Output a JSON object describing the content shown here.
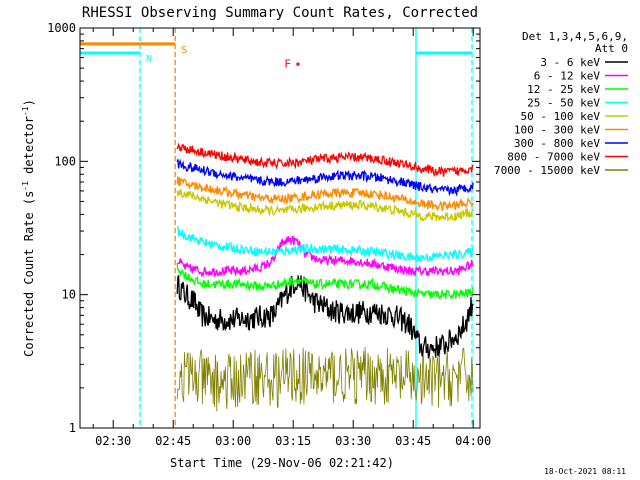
{
  "chart_data": {
    "type": "line",
    "title": "RHESSI Observing Summary Count Rates, Corrected",
    "xlabel": "Start Time (29-Nov-06 02:21:42)",
    "ylabel_main": "Corrected Count Rate (s",
    "ylabel_sup1": "-1",
    "ylabel_mid": " detector",
    "ylabel_sup2": "-1",
    "ylabel_end": ")",
    "y_scale": "log",
    "ylim": [
      1,
      1000
    ],
    "y_ticks": [
      {
        "value": 1,
        "label": "1"
      },
      {
        "value": 10,
        "label": "10"
      },
      {
        "value": 100,
        "label": "100"
      },
      {
        "value": 1000,
        "label": "1000"
      }
    ],
    "xlim": [
      21.7,
      121.7
    ],
    "x_ticks": [
      {
        "value": 30,
        "label": "02:30"
      },
      {
        "value": 45,
        "label": "02:45"
      },
      {
        "value": 60,
        "label": "03:00"
      },
      {
        "value": 75,
        "label": "03:15"
      },
      {
        "value": 90,
        "label": "03:30"
      },
      {
        "value": 105,
        "label": "03:45"
      },
      {
        "value": 120,
        "label": "04:00"
      }
    ],
    "legend_position": "right",
    "legend_header": [
      "Det 1,3,4,5,6,9,",
      "Att 0"
    ],
    "series": [
      {
        "name": "3 - 6 keV",
        "color": "#000000",
        "points": [
          [
            46,
            12
          ],
          [
            48,
            10
          ],
          [
            50,
            9
          ],
          [
            52,
            7
          ],
          [
            55,
            6.5
          ],
          [
            60,
            6.5
          ],
          [
            65,
            6.7
          ],
          [
            70,
            7
          ],
          [
            73,
            10
          ],
          [
            76,
            13
          ],
          [
            80,
            9
          ],
          [
            85,
            7.5
          ],
          [
            90,
            7.3
          ],
          [
            95,
            7.5
          ],
          [
            100,
            7
          ],
          [
            104,
            6
          ],
          [
            107,
            4
          ],
          [
            110,
            4
          ],
          [
            113,
            4.2
          ],
          [
            116,
            5
          ],
          [
            118,
            6
          ],
          [
            120,
            9
          ]
        ]
      },
      {
        "name": "6 - 12 keV",
        "color": "#ff00ff",
        "points": [
          [
            46,
            18
          ],
          [
            48,
            16
          ],
          [
            52,
            15
          ],
          [
            57,
            15
          ],
          [
            62,
            15
          ],
          [
            67,
            16
          ],
          [
            70,
            18
          ],
          [
            72,
            24
          ],
          [
            74,
            26
          ],
          [
            76,
            25
          ],
          [
            78,
            20
          ],
          [
            82,
            18
          ],
          [
            86,
            18
          ],
          [
            90,
            18
          ],
          [
            95,
            17
          ],
          [
            100,
            16
          ],
          [
            104,
            15
          ],
          [
            108,
            15
          ],
          [
            112,
            15
          ],
          [
            116,
            15
          ],
          [
            120,
            17
          ]
        ]
      },
      {
        "name": "12 - 25 keV",
        "color": "#00ff00",
        "points": [
          [
            46,
            16
          ],
          [
            48,
            14
          ],
          [
            52,
            12
          ],
          [
            57,
            12
          ],
          [
            62,
            12
          ],
          [
            67,
            11.5
          ],
          [
            72,
            12
          ],
          [
            76,
            13
          ],
          [
            80,
            12
          ],
          [
            85,
            12
          ],
          [
            90,
            12
          ],
          [
            95,
            12
          ],
          [
            100,
            11
          ],
          [
            104,
            10.5
          ],
          [
            108,
            10
          ],
          [
            112,
            10
          ],
          [
            116,
            10
          ],
          [
            120,
            10.5
          ]
        ]
      },
      {
        "name": "25 - 50 keV",
        "color": "#00ffff",
        "points": [
          [
            46,
            30
          ],
          [
            48,
            28
          ],
          [
            52,
            25
          ],
          [
            57,
            23
          ],
          [
            62,
            22
          ],
          [
            67,
            21
          ],
          [
            72,
            21
          ],
          [
            76,
            22
          ],
          [
            80,
            22
          ],
          [
            85,
            22
          ],
          [
            90,
            21.5
          ],
          [
            95,
            21
          ],
          [
            100,
            20
          ],
          [
            104,
            19
          ],
          [
            108,
            19
          ],
          [
            112,
            19.5
          ],
          [
            116,
            20
          ],
          [
            120,
            21
          ]
        ]
      },
      {
        "name": "50 - 100 keV",
        "color": "#c8c800",
        "points": [
          [
            46,
            60
          ],
          [
            48,
            57
          ],
          [
            52,
            53
          ],
          [
            57,
            48
          ],
          [
            62,
            45
          ],
          [
            67,
            43
          ],
          [
            72,
            42
          ],
          [
            77,
            44
          ],
          [
            82,
            46
          ],
          [
            87,
            47
          ],
          [
            92,
            47
          ],
          [
            97,
            45
          ],
          [
            102,
            42
          ],
          [
            107,
            39
          ],
          [
            112,
            38
          ],
          [
            116,
            39
          ],
          [
            120,
            42
          ]
        ]
      },
      {
        "name": "100 - 300 keV",
        "color": "#ff8800",
        "points": [
          [
            46,
            72
          ],
          [
            48,
            68
          ],
          [
            52,
            64
          ],
          [
            57,
            60
          ],
          [
            62,
            56
          ],
          [
            67,
            53
          ],
          [
            72,
            52
          ],
          [
            77,
            54
          ],
          [
            82,
            57
          ],
          [
            87,
            58
          ],
          [
            92,
            58
          ],
          [
            97,
            56
          ],
          [
            102,
            52
          ],
          [
            107,
            48
          ],
          [
            112,
            46
          ],
          [
            116,
            47
          ],
          [
            120,
            50
          ]
        ]
      },
      {
        "name": "300 - 800 keV",
        "color": "#0000ff",
        "points": [
          [
            46,
            96
          ],
          [
            48,
            92
          ],
          [
            52,
            86
          ],
          [
            57,
            80
          ],
          [
            62,
            75
          ],
          [
            67,
            71
          ],
          [
            72,
            70
          ],
          [
            77,
            72
          ],
          [
            82,
            76
          ],
          [
            87,
            78
          ],
          [
            92,
            78
          ],
          [
            97,
            75
          ],
          [
            102,
            70
          ],
          [
            107,
            64
          ],
          [
            112,
            60
          ],
          [
            116,
            61
          ],
          [
            120,
            65
          ]
        ]
      },
      {
        "name": "800 - 7000 keV",
        "color": "#ff0000",
        "points": [
          [
            46,
            130
          ],
          [
            48,
            125
          ],
          [
            52,
            118
          ],
          [
            57,
            110
          ],
          [
            62,
            103
          ],
          [
            67,
            98
          ],
          [
            72,
            96
          ],
          [
            77,
            99
          ],
          [
            82,
            104
          ],
          [
            87,
            107
          ],
          [
            92,
            107
          ],
          [
            97,
            103
          ],
          [
            102,
            96
          ],
          [
            107,
            88
          ],
          [
            112,
            83
          ],
          [
            116,
            84
          ],
          [
            120,
            90
          ]
        ]
      },
      {
        "name": "7000 - 15000 keV",
        "color": "#808000",
        "points": [
          [
            46,
            2.5
          ],
          [
            50,
            2.4
          ],
          [
            55,
            2.2
          ],
          [
            60,
            2.2
          ],
          [
            65,
            2.5
          ],
          [
            70,
            2.3
          ],
          [
            75,
            2.5
          ],
          [
            80,
            2.4
          ],
          [
            85,
            2.5
          ],
          [
            90,
            2.4
          ],
          [
            95,
            2.5
          ],
          [
            100,
            2.4
          ],
          [
            104,
            2.3
          ],
          [
            108,
            2.2
          ],
          [
            112,
            2.3
          ],
          [
            116,
            2.4
          ],
          [
            120,
            2.5
          ]
        ]
      }
    ],
    "flag_lines": [
      {
        "label": "N",
        "color": "#00ffff",
        "y": 650,
        "x_start": 21.7,
        "x_end": 36.7
      },
      {
        "label": "",
        "color": "#00ffff",
        "y": 650,
        "x_start": 105.7,
        "x_end": 119.7
      },
      {
        "label": "S",
        "color": "#ff8800",
        "y": 760,
        "x_start": 21.7,
        "x_end": 45.5
      }
    ],
    "flag_markers": [
      {
        "label": "F",
        "color": "#ff0000",
        "x": 75.3,
        "y": 540
      }
    ],
    "vertical_lines": [
      {
        "x": 36.7,
        "color": "#00ffff",
        "style": "dashed"
      },
      {
        "x": 45.5,
        "color": "#ff8800",
        "style": "dashed"
      },
      {
        "x": 105.7,
        "color": "#00ffff",
        "style": "solid"
      },
      {
        "x": 119.7,
        "color": "#00ffff",
        "style": "dashed"
      }
    ]
  },
  "timestamp": "18-Oct-2021 08:11"
}
